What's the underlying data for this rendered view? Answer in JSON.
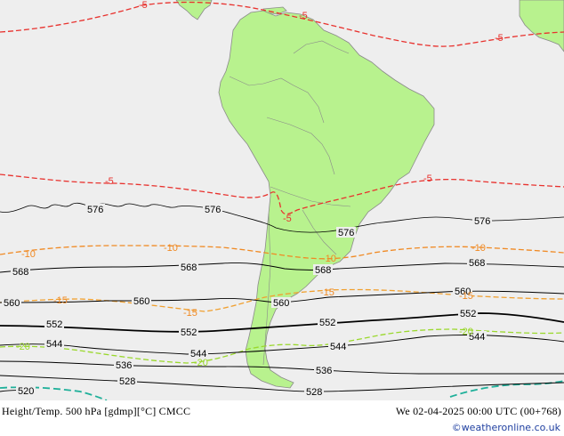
{
  "title": {
    "left": "Height/Temp. 500 hPa [gdmp][°C] CMCC",
    "right": "We 02-04-2025 00:00 UTC (00+768)"
  },
  "credit": "©weatheronline.co.uk",
  "colors": {
    "ocean": "#eeeeee",
    "land": "#b8f28e",
    "border": "#8a8a8a",
    "height_contour": "#000000",
    "temp_minus5": "#e8322e",
    "temp_minus10": "#f08a24",
    "temp_minus15": "#f0a030",
    "temp_minus20": "#9ad82c",
    "temp_minus25": "#1fb09a"
  },
  "height_contour_labels": {
    "c576": [
      "576",
      "576",
      "576",
      "576"
    ],
    "c568": [
      "568",
      "568",
      "568",
      "568"
    ],
    "c560": [
      "560",
      "560",
      "560",
      "560"
    ],
    "c552": [
      "552",
      "552",
      "552",
      "552"
    ],
    "c544": [
      "544",
      "544",
      "544",
      "544"
    ],
    "c536": [
      "536",
      "536"
    ],
    "c528": [
      "528",
      "528"
    ],
    "c520": [
      "520"
    ]
  },
  "temperature_labels": {
    "t5": [
      "-5",
      "-5",
      "-5",
      "-5",
      "-5",
      "-5"
    ],
    "t10": [
      "-10",
      "-10",
      "-10",
      "-10"
    ],
    "t15": [
      "-15",
      "-15",
      "-15",
      "-15"
    ],
    "t20": [
      "-20",
      "-20",
      "-20"
    ]
  }
}
